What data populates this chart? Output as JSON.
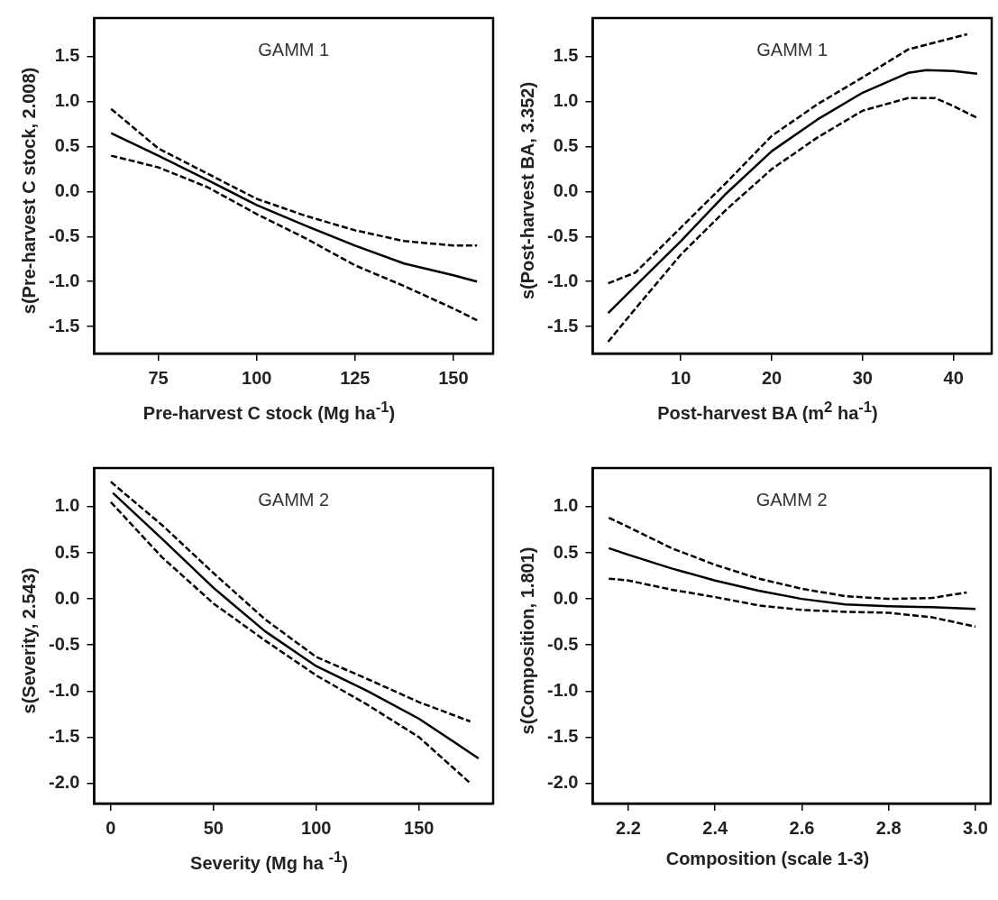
{
  "chart_data": [
    {
      "type": "line",
      "annotations": [
        "GAMM 1"
      ],
      "xlabel": "Pre-harvest C stock (Mg ha$^{-1}$)",
      "ylabel": "s(Pre-harvest C stock, 2.008)",
      "xlim": [
        58.7,
        160.1
      ],
      "ylim": [
        -1.8,
        1.93
      ],
      "xticks": [
        75,
        100,
        125,
        150
      ],
      "yticks": [
        -1.5,
        {
          "value": -1,
          "label": "-1.0"
        },
        -0.5,
        {
          "value": 0,
          "label": "0.0"
        },
        0.5,
        {
          "value": 1,
          "label": "1.0"
        },
        1.5
      ],
      "grid": false,
      "legend": false,
      "marker": "none",
      "series": [
        {
          "color": "#000000",
          "line_style": "solid",
          "x": [
            63,
            75,
            87.5,
            100,
            112.5,
            125,
            137.5,
            150,
            156
          ],
          "values": [
            0.65,
            0.4,
            0.13,
            -0.15,
            -0.38,
            -0.6,
            -0.8,
            -0.93,
            -1.0
          ]
        },
        {
          "color": "#000000",
          "line_style": "dashed",
          "x": [
            63,
            75,
            87.5,
            100,
            112.5,
            125,
            137.5,
            150,
            156
          ],
          "values": [
            0.92,
            0.48,
            0.2,
            -0.08,
            -0.27,
            -0.43,
            -0.55,
            -0.6,
            -0.6
          ]
        },
        {
          "color": "#000000",
          "line_style": "dashed",
          "x": [
            63,
            75,
            87.5,
            100,
            112.5,
            125,
            137.5,
            150,
            156
          ],
          "values": [
            0.4,
            0.27,
            0.05,
            -0.25,
            -0.52,
            -0.82,
            -1.05,
            -1.3,
            -1.43
          ]
        }
      ]
    },
    {
      "type": "line",
      "annotations": [
        "GAMM 1"
      ],
      "xlabel": "Post-harvest BA (m$^{2}$ ha$^{-1}$)",
      "ylabel": "s(Post-harvest BA, 3.352)",
      "xlim": [
        0.3,
        44.2
      ],
      "ylim": [
        -1.8,
        1.93
      ],
      "xticks": [
        10,
        20,
        30,
        40
      ],
      "yticks": [
        -1.5,
        {
          "value": -1,
          "label": "-1.0"
        },
        -0.5,
        {
          "value": 0,
          "label": "0.0"
        },
        0.5,
        {
          "value": 1,
          "label": "1.0"
        },
        1.5
      ],
      "grid": false,
      "legend": false,
      "marker": "none",
      "series": [
        {
          "color": "#000000",
          "line_style": "solid",
          "x": [
            2,
            5,
            10,
            15,
            20,
            25,
            30,
            35,
            37,
            40,
            42.6
          ],
          "values": [
            -1.35,
            -1.05,
            -0.55,
            -0.02,
            0.45,
            0.8,
            1.1,
            1.32,
            1.35,
            1.34,
            1.31
          ]
        },
        {
          "color": "#000000",
          "line_style": "dashed",
          "x": [
            2,
            5,
            10,
            15,
            20,
            25,
            30,
            35,
            41.5
          ],
          "values": [
            -1.02,
            -0.9,
            -0.4,
            0.1,
            0.62,
            0.97,
            1.27,
            1.58,
            1.75
          ]
        },
        {
          "color": "#000000",
          "line_style": "dashed",
          "x": [
            2,
            5,
            10,
            15,
            20,
            25,
            30,
            35,
            38,
            40,
            42.6
          ],
          "values": [
            -1.67,
            -1.3,
            -0.7,
            -0.2,
            0.25,
            0.6,
            0.9,
            1.04,
            1.04,
            0.95,
            0.82
          ]
        }
      ]
    },
    {
      "type": "line",
      "annotations": [
        "GAMM 2"
      ],
      "xlabel": "Severity (Mg ha $^{-1}$)",
      "ylabel": "s(Severity, 2.543)",
      "xlim": [
        -8.1,
        186.1
      ],
      "ylim": [
        -2.22,
        1.42
      ],
      "xticks": [
        0,
        50,
        100,
        150
      ],
      "yticks": [
        {
          "value": -2,
          "label": "-2.0"
        },
        -1.5,
        {
          "value": -1,
          "label": "-1.0"
        },
        -0.5,
        {
          "value": 0,
          "label": "0.0"
        },
        0.5,
        {
          "value": 1,
          "label": "1.0"
        }
      ],
      "grid": false,
      "legend": false,
      "marker": "none",
      "series": [
        {
          "color": "#000000",
          "line_style": "solid",
          "x": [
            1,
            25,
            50,
            75,
            100,
            125,
            150,
            179
          ],
          "values": [
            1.15,
            0.65,
            0.12,
            -0.35,
            -0.73,
            -1.0,
            -1.3,
            -1.73
          ]
        },
        {
          "color": "#000000",
          "line_style": "dashed",
          "x": [
            0,
            25,
            50,
            75,
            100,
            125,
            150,
            175
          ],
          "values": [
            1.27,
            0.8,
            0.28,
            -0.22,
            -0.63,
            -0.87,
            -1.12,
            -1.33
          ]
        },
        {
          "color": "#000000",
          "line_style": "dashed",
          "x": [
            0,
            25,
            50,
            75,
            100,
            125,
            150,
            175
          ],
          "values": [
            1.05,
            0.45,
            -0.05,
            -0.45,
            -0.83,
            -1.15,
            -1.5,
            -2.0
          ]
        }
      ]
    },
    {
      "type": "line",
      "annotations": [
        "GAMM 2"
      ],
      "xlabel": "Composition (scale 1-3)",
      "ylabel": "s(Composition, 1.801)",
      "xlim": [
        2.118,
        3.035
      ],
      "ylim": [
        -2.22,
        1.42
      ],
      "xticks": [
        2.2,
        2.4,
        2.6,
        2.8,
        {
          "value": 3,
          "label": "3.0"
        }
      ],
      "yticks": [
        {
          "value": -2,
          "label": "-2.0"
        },
        -1.5,
        {
          "value": -1,
          "label": "-1.0"
        },
        -0.5,
        {
          "value": 0,
          "label": "0.0"
        },
        0.5,
        {
          "value": 1,
          "label": "1.0"
        }
      ],
      "grid": false,
      "legend": false,
      "marker": "none",
      "series": [
        {
          "color": "#000000",
          "line_style": "solid",
          "x": [
            2.155,
            2.2,
            2.3,
            2.4,
            2.5,
            2.6,
            2.7,
            2.8,
            2.9,
            3.0
          ],
          "values": [
            0.55,
            0.48,
            0.33,
            0.2,
            0.09,
            0.0,
            -0.06,
            -0.08,
            -0.09,
            -0.11
          ]
        },
        {
          "color": "#000000",
          "line_style": "dashed",
          "x": [
            2.155,
            2.2,
            2.3,
            2.4,
            2.5,
            2.6,
            2.7,
            2.8,
            2.9,
            2.98
          ],
          "values": [
            0.88,
            0.78,
            0.55,
            0.37,
            0.22,
            0.11,
            0.03,
            0.0,
            0.01,
            0.07
          ]
        },
        {
          "color": "#000000",
          "line_style": "dashed",
          "x": [
            2.155,
            2.2,
            2.3,
            2.4,
            2.5,
            2.6,
            2.7,
            2.8,
            2.9,
            3.0
          ],
          "values": [
            0.22,
            0.2,
            0.1,
            0.02,
            -0.07,
            -0.12,
            -0.14,
            -0.15,
            -0.2,
            -0.3
          ]
        }
      ]
    }
  ]
}
